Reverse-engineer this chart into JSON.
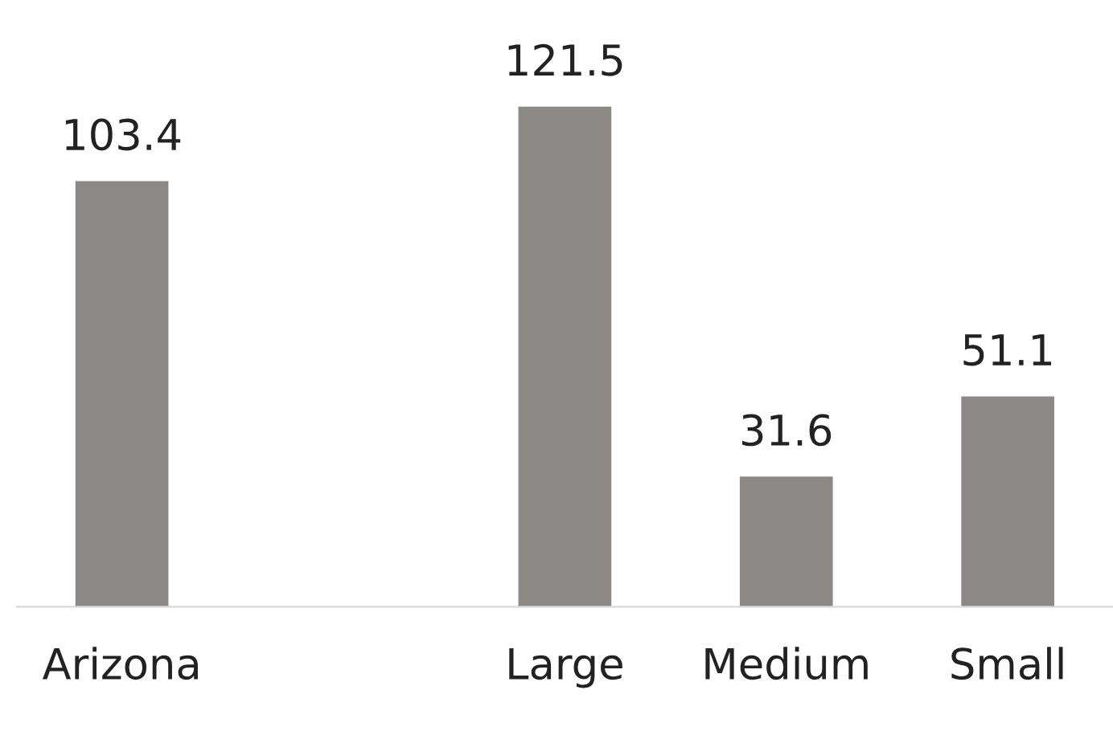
{
  "chart_data": {
    "type": "bar",
    "categories": [
      "Arizona",
      null,
      "Large",
      "Medium",
      "Small"
    ],
    "values": [
      103.4,
      null,
      121.5,
      31.6,
      51.1
    ],
    "color": "#8b8886",
    "data_labels": true,
    "grid": false,
    "legend": false
  }
}
